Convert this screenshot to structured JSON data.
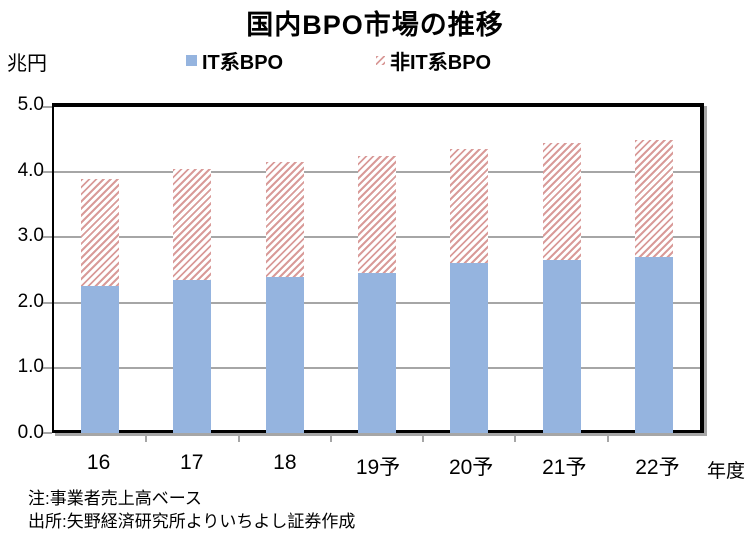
{
  "title": "国内BPO市場の推移",
  "unit_label": "兆円",
  "axis_suffix": "年度",
  "legend": [
    {
      "label": "IT系BPO",
      "swatch": "solid-blue-square-icon"
    },
    {
      "label": "非IT系BPO",
      "swatch": "pink-hatched-square-icon"
    }
  ],
  "notes": [
    "注:事業者売上高ベース",
    "出所:矢野経済研究所よりいちよし証券作成"
  ],
  "colors": {
    "it_bpo_fill": "#95B4DF",
    "non_it_bpo_stripe": "#D99B99",
    "non_it_bpo_bg": "#FFFFFF",
    "gridline": "#A6A6A6",
    "axis": "#000000"
  },
  "chart_data": {
    "type": "bar",
    "stacked": true,
    "title": "国内BPO市場の推移",
    "categories": [
      "16",
      "17",
      "18",
      "19予",
      "20予",
      "21予",
      "22予"
    ],
    "series": [
      {
        "name": "IT系BPO",
        "style": "solid",
        "values": [
          2.25,
          2.35,
          2.4,
          2.45,
          2.6,
          2.65,
          2.7
        ]
      },
      {
        "name": "非IT系BPO",
        "style": "diagonal-hatch",
        "values": [
          1.65,
          1.7,
          1.75,
          1.8,
          1.75,
          1.8,
          1.8
        ]
      }
    ],
    "totals": [
      3.9,
      4.05,
      4.15,
      4.25,
      4.35,
      4.45,
      4.5
    ],
    "xlabel": "年度",
    "ylabel": "兆円",
    "ylim": [
      0,
      5
    ],
    "yticks": [
      "5.0",
      "4.0",
      "3.0",
      "2.0",
      "1.0",
      "0.0"
    ],
    "grid": true,
    "legend_position": "top"
  }
}
